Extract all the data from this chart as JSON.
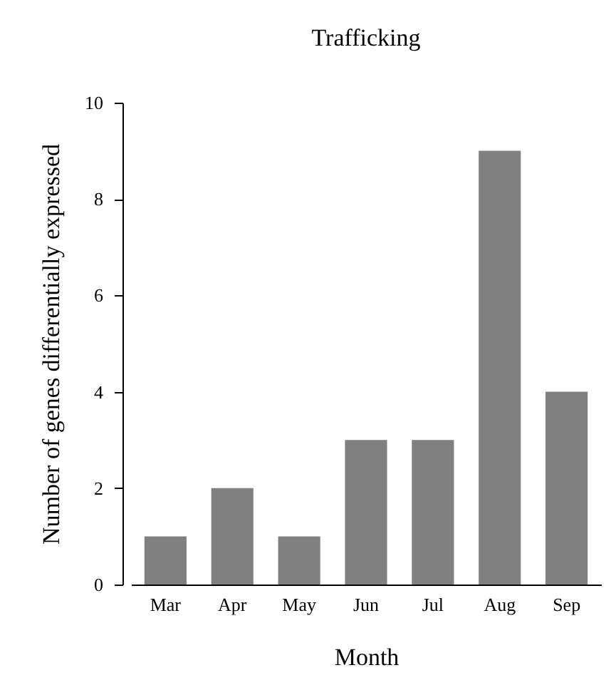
{
  "chart_data": {
    "type": "bar",
    "title": "Trafficking",
    "xlabel": "Month",
    "ylabel": "Number of genes differentially expressed",
    "categories": [
      "Mar",
      "Apr",
      "May",
      "Jun",
      "Jul",
      "Aug",
      "Sep"
    ],
    "values": [
      1,
      2,
      1,
      3,
      3,
      9,
      4
    ],
    "color": "#808080",
    "ylim": [
      0,
      10
    ],
    "yticks": [
      0,
      2,
      4,
      6,
      8,
      10
    ],
    "grid": false
  }
}
